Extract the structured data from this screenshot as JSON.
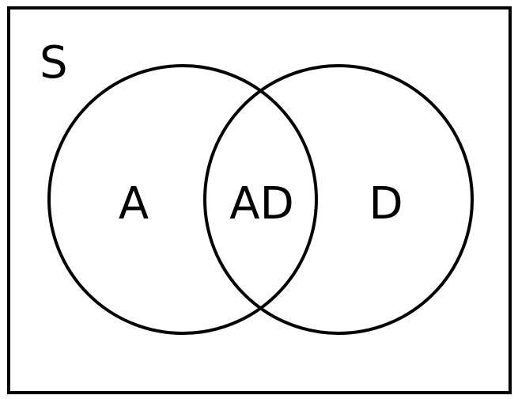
{
  "diagram": {
    "universe_label": "S",
    "set_a_label": "A",
    "intersection_label": "AD",
    "set_d_label": "D",
    "stroke_color": "#000000",
    "background_color": "#ffffff"
  }
}
